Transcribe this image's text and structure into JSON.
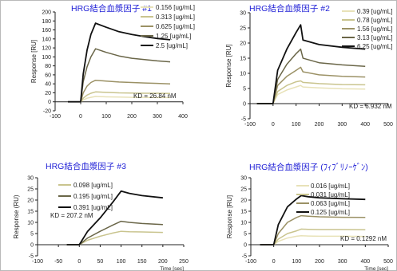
{
  "chart_data": [
    {
      "type": "line",
      "title": "HRG結合血漿因子 #1",
      "xlabel": "",
      "ylabel": "Response [RU]",
      "xlim": [
        -100,
        400
      ],
      "ylim": [
        -20,
        200
      ],
      "xticks": [
        -100,
        0,
        100,
        200,
        300,
        400
      ],
      "yticks": [
        -20,
        0,
        20,
        40,
        60,
        80,
        100,
        120,
        140,
        160,
        180,
        200
      ],
      "grid": false,
      "legend_position": "top-right",
      "annotation": "KD = 26.84 nM",
      "colors": [
        "#e8e2b8",
        "#c9c48e",
        "#9b9165",
        "#6a6648",
        "#111111"
      ],
      "series": [
        {
          "name": "0.156 [ug/mL]",
          "x": [
            -50,
            0,
            10,
            25,
            40,
            58,
            100,
            150,
            200,
            250,
            300,
            350
          ],
          "y": [
            0,
            0,
            4,
            8,
            10,
            12,
            11,
            10.5,
            10,
            10,
            9.5,
            9.5
          ]
        },
        {
          "name": "0.313 [ug/mL]",
          "x": [
            -50,
            0,
            10,
            25,
            40,
            58,
            100,
            150,
            200,
            250,
            300,
            350
          ],
          "y": [
            0,
            0,
            8,
            15,
            19,
            22,
            21,
            20,
            19.5,
            19,
            19,
            18.5
          ]
        },
        {
          "name": "0.625 [ug/mL]",
          "x": [
            -50,
            0,
            10,
            25,
            40,
            58,
            100,
            150,
            200,
            250,
            300,
            350
          ],
          "y": [
            0,
            0,
            20,
            35,
            43,
            48,
            46,
            44,
            43,
            42,
            41,
            40
          ]
        },
        {
          "name": "1.25 [ug/mL]",
          "x": [
            -50,
            0,
            10,
            25,
            40,
            58,
            100,
            150,
            200,
            250,
            300,
            350
          ],
          "y": [
            0,
            0,
            45,
            78,
            100,
            118,
            110,
            102,
            97,
            94,
            91,
            89
          ]
        },
        {
          "name": "2.5 [ug/mL]",
          "x": [
            -50,
            0,
            10,
            25,
            40,
            58,
            100,
            150,
            200,
            250,
            300,
            350
          ],
          "y": [
            0,
            0,
            62,
            115,
            150,
            175,
            166,
            156,
            150,
            145,
            141,
            138
          ]
        }
      ]
    },
    {
      "type": "line",
      "title": "HRG結合血漿因子 #2",
      "xlabel": "",
      "ylabel": "Response [RU]",
      "xlim": [
        -100,
        500
      ],
      "ylim": [
        -5,
        30
      ],
      "xticks": [
        -100,
        0,
        100,
        200,
        300,
        400,
        500
      ],
      "yticks": [
        -5,
        0,
        5,
        10,
        15,
        20,
        25,
        30
      ],
      "grid": false,
      "legend_position": "top-right",
      "annotation": "KD = 6.932 nM",
      "colors": [
        "#e8e2b8",
        "#c9c48e",
        "#9b9165",
        "#6a6648",
        "#111111"
      ],
      "series": [
        {
          "name": "0.39 [ug/mL]",
          "x": [
            -70,
            0,
            20,
            60,
            100,
            120,
            130,
            200,
            300,
            400
          ],
          "y": [
            0,
            0,
            3,
            4.5,
            5.5,
            6,
            5.5,
            5.2,
            4.9,
            4.8
          ]
        },
        {
          "name": "0.78 [ug/mL]",
          "x": [
            -70,
            0,
            20,
            60,
            100,
            120,
            130,
            200,
            300,
            400
          ],
          "y": [
            0,
            0,
            4,
            6,
            7.2,
            7.5,
            7,
            6.6,
            6.3,
            6.2
          ]
        },
        {
          "name": "1.56 [ug/mL]",
          "x": [
            -70,
            0,
            20,
            60,
            100,
            120,
            130,
            200,
            300,
            400
          ],
          "y": [
            0,
            0,
            6,
            9,
            11,
            12,
            10.5,
            9.5,
            9,
            8.8
          ]
        },
        {
          "name": "3.13 [ug/mL]",
          "x": [
            -70,
            0,
            20,
            60,
            100,
            120,
            130,
            200,
            300,
            400
          ],
          "y": [
            0,
            0,
            8,
            13,
            16.5,
            18,
            15,
            13.5,
            12.8,
            12.3
          ]
        },
        {
          "name": "6.25 [ug/mL]",
          "x": [
            -70,
            0,
            20,
            60,
            100,
            120,
            130,
            200,
            300,
            400
          ],
          "y": [
            0,
            0,
            11,
            18,
            23.5,
            26,
            21,
            19.5,
            18.6,
            18
          ]
        }
      ]
    },
    {
      "type": "line",
      "title": "HRG結合血漿因子 #3",
      "xlabel": "Time [sec]",
      "ylabel": "Response (RU)",
      "xlim": [
        -100,
        250
      ],
      "ylim": [
        -5,
        30
      ],
      "xticks": [
        -100,
        -50,
        0,
        50,
        100,
        150,
        200,
        250
      ],
      "yticks": [
        -5,
        0,
        5,
        10,
        15,
        20,
        25,
        30
      ],
      "grid": false,
      "legend_position": "top-left",
      "annotation": "KD = 207.2 nM",
      "colors": [
        "#c9c48e",
        "#6a6648",
        "#111111"
      ],
      "series": [
        {
          "name": "0.098 [ug/mL]",
          "x": [
            -30,
            0,
            20,
            50,
            80,
            100,
            120,
            150,
            200
          ],
          "y": [
            0,
            0,
            2,
            3.8,
            5.2,
            6,
            5.8,
            5.7,
            5.5
          ]
        },
        {
          "name": "0.195 [ug/mL]",
          "x": [
            -30,
            0,
            20,
            50,
            80,
            100,
            120,
            150,
            200
          ],
          "y": [
            0,
            0,
            3,
            6,
            8.8,
            10.5,
            10,
            9.5,
            9
          ]
        },
        {
          "name": "0.391 [ug/mL]",
          "x": [
            -30,
            0,
            20,
            50,
            80,
            100,
            120,
            150,
            200
          ],
          "y": [
            0,
            0,
            6,
            12,
            19,
            24,
            23,
            22,
            21
          ]
        }
      ]
    },
    {
      "type": "line",
      "title": "HRG結合血漿因子 (ﾌｨﾌﾞﾘﾉｰｹﾞﾝ)",
      "xlabel": "Time [sec]",
      "ylabel": "Response [RU]",
      "xlim": [
        -100,
        500
      ],
      "ylim": [
        -5,
        30
      ],
      "xticks": [
        -100,
        0,
        100,
        200,
        300,
        400,
        500
      ],
      "yticks": [
        -5,
        0,
        5,
        10,
        15,
        20,
        25,
        30
      ],
      "grid": false,
      "legend_position": "top-right",
      "annotation": "KD = 0.1292 nM",
      "colors": [
        "#e8e2b8",
        "#c9c48e",
        "#9b9165",
        "#111111"
      ],
      "series": [
        {
          "name": "0.016 [ug/mL]",
          "x": [
            -60,
            0,
            20,
            60,
            100,
            120,
            150,
            200,
            300,
            400
          ],
          "y": [
            0,
            0,
            1.5,
            3,
            3.8,
            4,
            3.9,
            3.8,
            3.8,
            3.7
          ]
        },
        {
          "name": "0.031 [ug/mL]",
          "x": [
            -60,
            0,
            20,
            60,
            100,
            120,
            150,
            200,
            300,
            400
          ],
          "y": [
            0,
            0,
            2.5,
            5,
            6.2,
            7,
            6.9,
            6.8,
            6.8,
            6.7
          ]
        },
        {
          "name": "0.063 [ug/mL]",
          "x": [
            -60,
            0,
            20,
            60,
            100,
            120,
            150,
            200,
            300,
            400
          ],
          "y": [
            0,
            0,
            5,
            10,
            12.2,
            13,
            12.8,
            12.5,
            12.3,
            12.2
          ]
        },
        {
          "name": "0.125 [ug/mL]",
          "x": [
            -60,
            0,
            20,
            60,
            100,
            120,
            150,
            200,
            300,
            400
          ],
          "y": [
            0,
            0,
            9,
            17,
            20.5,
            22,
            21.5,
            21,
            20.6,
            20.3
          ]
        }
      ]
    }
  ]
}
